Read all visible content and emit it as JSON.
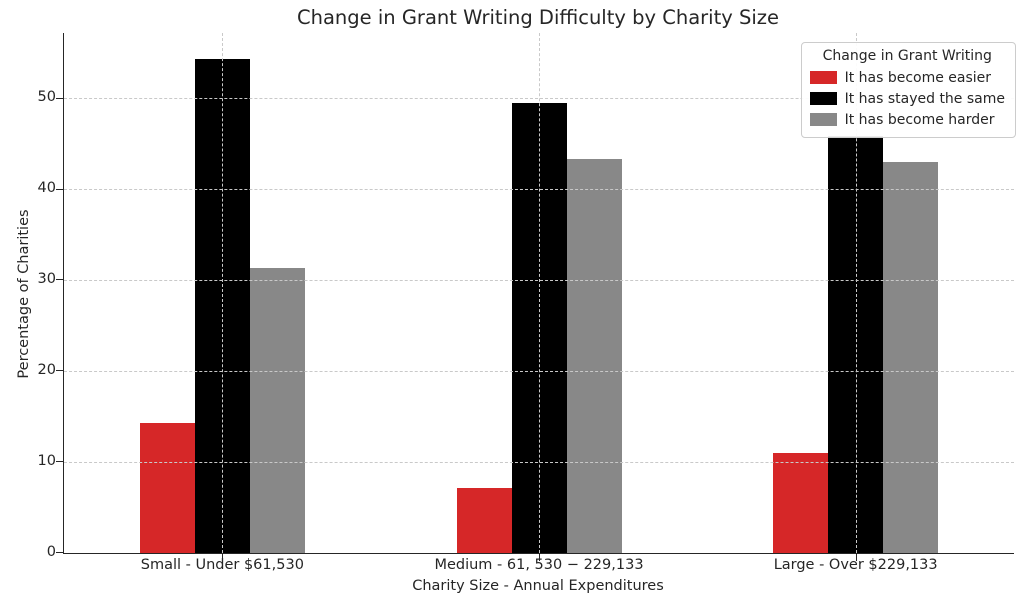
{
  "chart_data": {
    "type": "bar",
    "title": "Change in Grant Writing Difficulty by Charity Size",
    "xlabel": "Charity Size - Annual Expenditures",
    "ylabel": "Percentage of Charities",
    "categories": [
      "Small - Under $61,530",
      "Medium - 61, 530 − 229,133",
      "Large - Over $229,133"
    ],
    "series": [
      {
        "name": "It has become easier",
        "color": "#d62728",
        "values": [
          14.3,
          7.1,
          11.0
        ]
      },
      {
        "name": "It has stayed the same",
        "color": "#000000",
        "values": [
          54.3,
          49.5,
          45.9
        ]
      },
      {
        "name": "It has become harder",
        "color": "#888888",
        "values": [
          31.4,
          43.3,
          43.0
        ]
      }
    ],
    "legend": {
      "title": "Change in Grant Writing",
      "position": "upper right"
    },
    "yticks": [
      0,
      10,
      20,
      30,
      40,
      50
    ],
    "ylim": [
      0,
      57.2
    ],
    "grid": "dashed, horizontal at yticks and vertical at category centers, drawn above bars",
    "axis_color": "#262626",
    "grid_color": "#c9c9c9",
    "background": "#ffffff"
  }
}
